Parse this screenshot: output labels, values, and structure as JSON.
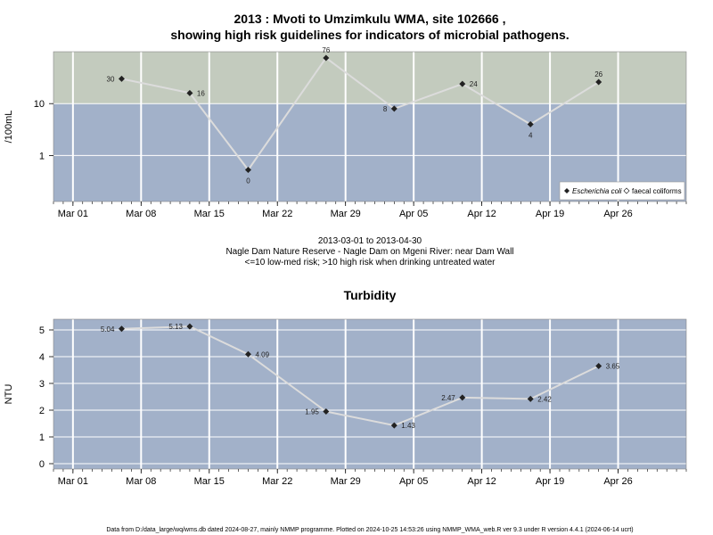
{
  "page": {
    "title_line1": "2013 : Mvoti to Umzimkulu WMA, site 102666 ,",
    "title_line2": "showing high risk guidelines for indicators of microbial pathogens.",
    "caption_dates": "2013-03-01 to 2013-04-30",
    "caption_site": "Nagle Dam Nature Reserve - Nagle Dam on Mgeni River: near Dam Wall",
    "caption_risk": "<=10 low-med risk; >10 high risk when drinking untreated water",
    "footer": "Data from D:/data_large/wq/wms.db dated 2024-08-27, mainly NMMP programme. Plotted on 2024-10-25 14:53:26 using NMMP_WMA_web.R ver 9.3 under R version 4.4.1 (2024-06-14 ucrt)"
  },
  "colors": {
    "panel_low": "#a2b1c9",
    "panel_high": "#c3cbbe",
    "grid": "#ffffff",
    "series_line": "#dcdcdc",
    "marker": "#222222"
  },
  "chart_data": [
    {
      "type": "line",
      "title": "",
      "xlabel": "",
      "ylabel": "/100mL",
      "y_scale": "log",
      "ylim": [
        0.13,
        100
      ],
      "y_ticks": [
        1,
        10
      ],
      "y_tick_labels": [
        "1",
        "10"
      ],
      "threshold": 10,
      "x_ticks": [
        "2013-03-01",
        "2013-03-08",
        "2013-03-15",
        "2013-03-22",
        "2013-03-29",
        "2013-04-05",
        "2013-04-12",
        "2013-04-19",
        "2013-04-26"
      ],
      "x_tick_labels": [
        "Mar 01",
        "Mar 08",
        "Mar 15",
        "Mar 22",
        "Mar 29",
        "Apr 05",
        "Apr 12",
        "Apr 19",
        "Apr 26"
      ],
      "xlim": [
        "2013-02-27",
        "2013-05-03"
      ],
      "legend": {
        "placement": "bottom-right",
        "entries": [
          "Escherichia coli",
          "faecal coliforms"
        ]
      },
      "series": [
        {
          "name": "Escherichia coli",
          "x": [
            "2013-03-06",
            "2013-03-13",
            "2013-03-19",
            "2013-03-27",
            "2013-04-03",
            "2013-04-10",
            "2013-04-17",
            "2013-04-24"
          ],
          "values": [
            30,
            16,
            0,
            76,
            8,
            24,
            4,
            26
          ],
          "plot_values": [
            30,
            16,
            0.53,
            76,
            8,
            24,
            4,
            26
          ],
          "labels": [
            "30",
            "16",
            "0",
            "76",
            "8",
            "24",
            "4",
            "26"
          ],
          "label_side": [
            "left",
            "right",
            "below",
            "above",
            "left",
            "right",
            "below",
            "above"
          ]
        }
      ]
    },
    {
      "type": "line",
      "title": "Turbidity",
      "xlabel": "",
      "ylabel": "NTU",
      "ylim": [
        -0.2,
        5.4
      ],
      "y_ticks": [
        0,
        1,
        2,
        3,
        4,
        5
      ],
      "y_tick_labels": [
        "0",
        "1",
        "2",
        "3",
        "4",
        "5"
      ],
      "x_ticks": [
        "2013-03-01",
        "2013-03-08",
        "2013-03-15",
        "2013-03-22",
        "2013-03-29",
        "2013-04-05",
        "2013-04-12",
        "2013-04-19",
        "2013-04-26"
      ],
      "x_tick_labels": [
        "Mar 01",
        "Mar 08",
        "Mar 15",
        "Mar 22",
        "Mar 29",
        "Apr 05",
        "Apr 12",
        "Apr 19",
        "Apr 26"
      ],
      "xlim": [
        "2013-02-27",
        "2013-05-03"
      ],
      "series": [
        {
          "x": [
            "2013-03-06",
            "2013-03-13",
            "2013-03-19",
            "2013-03-27",
            "2013-04-03",
            "2013-04-10",
            "2013-04-17",
            "2013-04-24"
          ],
          "values": [
            5.04,
            5.13,
            4.09,
            1.95,
            1.43,
            2.47,
            2.42,
            3.65
          ],
          "labels": [
            "5.04",
            "5.13",
            "4.09",
            "1.95",
            "1.43",
            "2.47",
            "2.42",
            "3.65"
          ],
          "label_side": [
            "left",
            "left",
            "right",
            "left",
            "right",
            "left",
            "right",
            "right"
          ]
        }
      ]
    }
  ]
}
